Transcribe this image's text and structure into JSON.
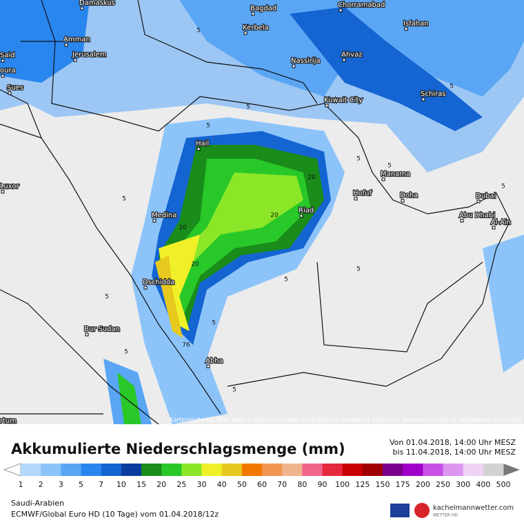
{
  "map": {
    "cities": [
      "Damaskus",
      "Bagdad",
      "Chorramabad",
      "Kerbela",
      "Isfahan",
      "Amman",
      "Jerusalem",
      "Said",
      "oura",
      "Sues",
      "Ahvaz",
      "Nassirija",
      "Schiras",
      "Kuwait City",
      "Hail",
      "Manama",
      "Hofuf",
      "Doha",
      "Luxor",
      "Dubai",
      "Riad",
      "Medina",
      "Abu Dhabi",
      "Al-Ain",
      "Dschidda",
      "Bur Sudan",
      "Abha",
      "rtum"
    ],
    "contour_labels": [
      "5",
      "5",
      "5",
      "5",
      "5",
      "5",
      "5",
      "5",
      "20",
      "20",
      "20",
      "20",
      "5",
      "5",
      "76",
      "5",
      "5",
      "5",
      "5"
    ],
    "attribution": "Kartenmaterial: Map data © OpenStreetMap contributors, rendering GIScience Research Group @ Heidelberg University"
  },
  "header": {
    "title": "Akkumulierte Niederschlagsmenge (mm)",
    "from": "Von 01.04.2018, 14:00 Uhr MESZ",
    "to": "bis 11.04.2018, 14:00 Uhr MESZ"
  },
  "legend": {
    "values": [
      1,
      2,
      3,
      5,
      7,
      10,
      15,
      20,
      25,
      30,
      40,
      50,
      60,
      70,
      80,
      90,
      100,
      125,
      150,
      175,
      200,
      250,
      300,
      400,
      500
    ],
    "colors": [
      "#b4d7fb",
      "#8cc4fa",
      "#5aa6f5",
      "#2a86ef",
      "#1464d2",
      "#0a3ca0",
      "#1a8c1a",
      "#28c828",
      "#8ce628",
      "#f0f028",
      "#e6c81e",
      "#f07800",
      "#f09650",
      "#f0b48c",
      "#f0648c",
      "#e6283c",
      "#c80000",
      "#a00000",
      "#78008c",
      "#a000c8",
      "#c850e6",
      "#dc96f0",
      "#f0d2f5",
      "#d2d2d2"
    ]
  },
  "footer": {
    "region": "Saudi-Arabien",
    "model": "ECMWF/Global Euro HD (10 Tage) vom 01.04.2018/12z",
    "brand": "kachelmannwetter.com",
    "brand_sub": "WETTER HD"
  }
}
